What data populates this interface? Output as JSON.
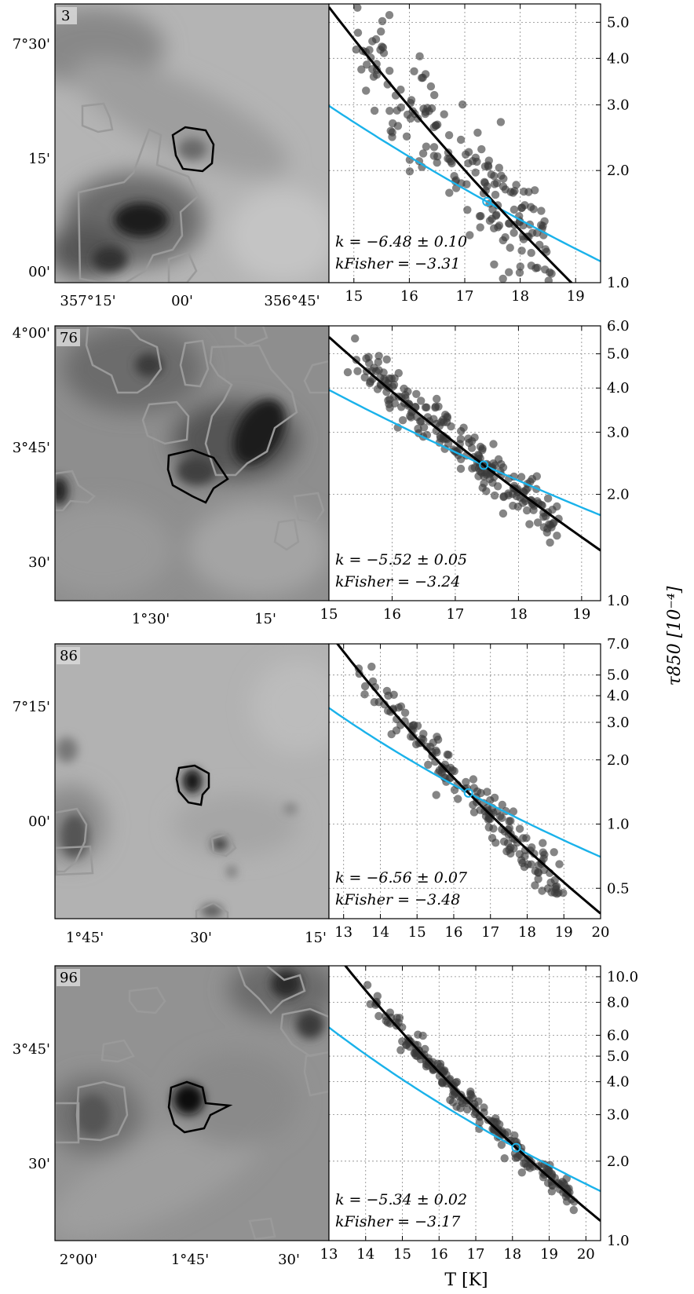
{
  "figure": {
    "ylabel_right": "τ850 [10⁻⁴]",
    "xlabel": "T [K]"
  },
  "colors": {
    "points": "#3a3a3a",
    "fit_line": "#000000",
    "fisher_line": "#1ab2ea",
    "contour_gray": "#9a9a9a",
    "contour_black": "#000000"
  },
  "chart_data": [
    {
      "type": "scatter",
      "panel_id": "3",
      "map_xticks": [
        "357°15'",
        "00'",
        "356°45'"
      ],
      "map_yticks": [
        "7°30'",
        "15'",
        "00'"
      ],
      "xlim": [
        14.55,
        19.45
      ],
      "xticks": [
        15,
        16,
        17,
        18,
        19
      ],
      "ylim": [
        1.0,
        5.6
      ],
      "yscale": "log",
      "yticks": [
        1.0,
        2.0,
        3.0,
        4.0,
        5.0
      ],
      "ytick_labels": [
        "1.0",
        "2.0",
        "3.0",
        "4.0",
        "5.0"
      ],
      "fit": {
        "label": "k = −6.48 ± 0.10",
        "slope": -6.48,
        "x0": 17.6,
        "y0": 1.6
      },
      "fisher": {
        "label": "kFisher = −3.31",
        "slope": -3.31,
        "x0": 17.4,
        "y0": 1.65
      },
      "points": {
        "x_range": [
          14.9,
          18.6
        ],
        "n": 190,
        "spread": 0.08,
        "seed": 3
      }
    },
    {
      "type": "scatter",
      "panel_id": "76",
      "map_xticks": [
        "1°30'",
        "15'"
      ],
      "map_yticks": [
        "4°00'",
        "3°45'",
        "30'"
      ],
      "xlim": [
        15.0,
        19.3
      ],
      "xticks": [
        15,
        16,
        17,
        18,
        19
      ],
      "ylim": [
        1.0,
        6.0
      ],
      "yscale": "log",
      "yticks": [
        1.0,
        2.0,
        3.0,
        4.0,
        5.0,
        6.0
      ],
      "ytick_labels": [
        "1.0",
        "2.0",
        "3.0",
        "4.0",
        "5.0",
        "6.0"
      ],
      "fit": {
        "label": "k = −5.52 ± 0.05",
        "slope": -5.52,
        "x0": 17.45,
        "y0": 2.42
      },
      "fisher": {
        "label": "kFisher = −3.24",
        "slope": -3.24,
        "x0": 17.45,
        "y0": 2.42
      },
      "points": {
        "x_range": [
          15.4,
          18.6
        ],
        "n": 230,
        "spread": 0.035,
        "seed": 76
      }
    },
    {
      "type": "scatter",
      "panel_id": "86",
      "map_xticks": [
        "1°45'",
        "30'",
        "15'"
      ],
      "map_yticks": [
        "7°15'",
        "00'"
      ],
      "xlim": [
        12.6,
        20.0
      ],
      "xticks": [
        13,
        14,
        15,
        16,
        17,
        18,
        19,
        20
      ],
      "ylim": [
        0.36,
        7.0
      ],
      "yscale": "log",
      "yticks": [
        0.5,
        1.0,
        2.0,
        3.0,
        4.0,
        5.0,
        7.0
      ],
      "ytick_labels": [
        "0.5",
        "1.0",
        "2.0",
        "3.0",
        "4.0",
        "5.0",
        "7.0"
      ],
      "fit": {
        "label": "k = −6.56 ± 0.07",
        "slope": -6.56,
        "x0": 16.4,
        "y0": 1.4
      },
      "fisher": {
        "label": "kFisher = −3.48",
        "slope": -3.48,
        "x0": 16.4,
        "y0": 1.4
      },
      "points": {
        "x_range": [
          13.4,
          18.9
        ],
        "n": 170,
        "spread": 0.06,
        "seed": 86
      }
    },
    {
      "type": "scatter",
      "panel_id": "96",
      "map_xticks": [
        "2°00'",
        "1°45'",
        "30'"
      ],
      "map_yticks": [
        "3°45'",
        "30'"
      ],
      "xlim": [
        13.0,
        20.4
      ],
      "xticks": [
        13,
        14,
        15,
        16,
        17,
        18,
        19,
        20
      ],
      "ylim": [
        1.0,
        11.0
      ],
      "yscale": "log",
      "yticks": [
        1.0,
        2.0,
        3.0,
        4.0,
        5.0,
        6.0,
        8.0,
        10.0
      ],
      "ytick_labels": [
        "1.0",
        "2.0",
        "3.0",
        "4.0",
        "5.0",
        "6.0",
        "8.0",
        "10.0"
      ],
      "fit": {
        "label": "k = −5.34 ± 0.02",
        "slope": -5.34,
        "x0": 18.1,
        "y0": 2.25
      },
      "fisher": {
        "label": "kFisher = −3.17",
        "slope": -3.17,
        "x0": 18.1,
        "y0": 2.25
      },
      "points": {
        "x_range": [
          13.9,
          19.7
        ],
        "n": 210,
        "spread": 0.025,
        "seed": 96
      }
    }
  ]
}
